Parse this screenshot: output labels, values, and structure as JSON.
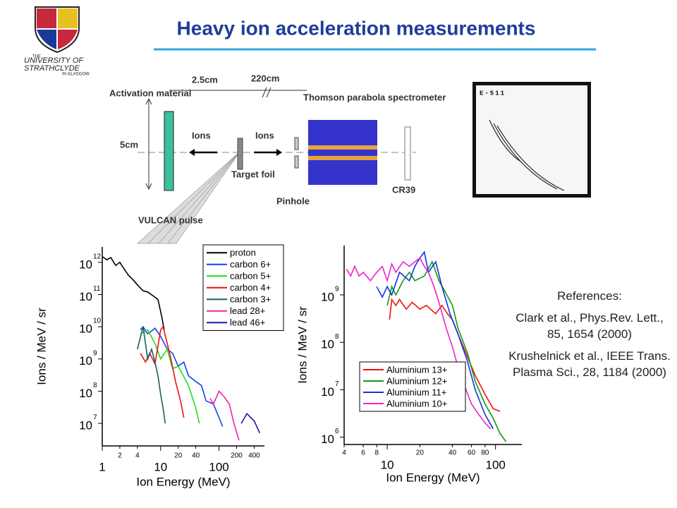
{
  "header": {
    "title": "Heavy ion acceleration measurements",
    "logo": {
      "the": "THE",
      "university": "UNIVERSITY OF",
      "name": "STRATHCLYDE",
      "place": "IN GLASGOW"
    }
  },
  "diagram": {
    "activation": "Activation material",
    "dist_near": "2.5cm",
    "dist_far": "220cm",
    "spectrometer": "Thomson parabola spectrometer",
    "height": "5cm",
    "ions_back": "Ions",
    "ions_forward": "Ions",
    "target": "Target foil",
    "pinhole": "Pinhole",
    "detector": "CR39",
    "laser": "VULCAN pulse",
    "image_label": "E-511"
  },
  "chart_data": [
    {
      "type": "line",
      "xscale": "log",
      "yscale": "log",
      "xlabel": "Ion Energy (MeV)",
      "ylabel": "Ions / MeV / sr",
      "xlim": [
        1,
        600
      ],
      "ylim": [
        2000000,
        3000000000000
      ],
      "xticks": [
        1,
        2,
        4,
        10,
        20,
        40,
        100,
        200,
        400
      ],
      "yticks": [
        {
          "value": 10000000,
          "label": "10",
          "sup": "7"
        },
        {
          "value": 100000000,
          "label": "10",
          "sup": "8"
        },
        {
          "value": 1000000000,
          "label": "10",
          "sup": "9"
        },
        {
          "value": 10000000000,
          "label": "10",
          "sup": "10"
        },
        {
          "value": 100000000000,
          "label": "10",
          "sup": "11"
        },
        {
          "value": 1000000000000,
          "label": "10",
          "sup": "12"
        }
      ],
      "legend": "upper right",
      "series": [
        {
          "name": "proton",
          "color": "#000000",
          "x": [
            1,
            1.2,
            1.4,
            1.7,
            2,
            2.4,
            2.8,
            3.3,
            4,
            5,
            6,
            7.5,
            9,
            10.5,
            11.5
          ],
          "values": [
            1500000000000,
            1200000000000,
            1400000000000,
            800000000000,
            1000000000000,
            600000000000,
            400000000000,
            300000000000,
            200000000000,
            130000000000,
            120000000000,
            90000000000,
            70000000000,
            20000000000,
            8000000000
          ]
        },
        {
          "name": "carbon 6+",
          "color": "#1144ee",
          "x": [
            4.5,
            5,
            6,
            8,
            10,
            13,
            16,
            20,
            25,
            30,
            40,
            50,
            60,
            80,
            100,
            115
          ],
          "values": [
            8000000000,
            10000000000,
            6000000000,
            9000000000,
            5000000000,
            2000000000,
            1500000000,
            600000000,
            800000000,
            300000000,
            200000000,
            150000000,
            50000000,
            40000000,
            15000000,
            8000000
          ]
        },
        {
          "name": "carbon 5+",
          "color": "#22dd22",
          "x": [
            4.5,
            6,
            8,
            10,
            13,
            16,
            20,
            30,
            40,
            46
          ],
          "values": [
            6000000000,
            8000000000,
            3000000000,
            1000000000,
            2000000000,
            500000000,
            600000000,
            150000000,
            30000000,
            10000000
          ]
        },
        {
          "name": "carbon 4+",
          "color": "#ee1111",
          "x": [
            4.5,
            5.5,
            6.5,
            8,
            10,
            11,
            13,
            15,
            18,
            22,
            25
          ],
          "values": [
            1500000000,
            800000000,
            1500000000,
            700000000,
            8000000000,
            10000000000,
            3000000000,
            1000000000,
            200000000,
            50000000,
            15000000
          ]
        },
        {
          "name": "carbon 3+",
          "color": "#1a6060",
          "x": [
            4,
            5,
            6,
            7,
            8,
            9,
            10,
            11,
            12
          ],
          "values": [
            2000000000,
            10000000000,
            1000000000,
            2000000000,
            800000000,
            300000000,
            80000000,
            30000000,
            10000000
          ]
        },
        {
          "name": "lead 28+",
          "color": "#ee22aa",
          "x": [
            70,
            80,
            100,
            120,
            150,
            180,
            220
          ],
          "values": [
            60000000,
            40000000,
            100000000,
            70000000,
            40000000,
            10000000,
            3000000
          ]
        },
        {
          "name": "lead 46+",
          "color": "#1a1aa0",
          "x": [
            240,
            300,
            400,
            500
          ],
          "values": [
            10000000,
            20000000,
            12000000,
            5000000
          ]
        }
      ]
    },
    {
      "type": "line",
      "xscale": "log",
      "yscale": "log",
      "xlabel": "Ion Energy (MeV)",
      "ylabel": "Ions / MeV / sr",
      "xlim": [
        4,
        175
      ],
      "ylim": [
        700000,
        11000000000
      ],
      "xticks": [
        4,
        6,
        8,
        10,
        20,
        40,
        60,
        80,
        100
      ],
      "yticks": [
        {
          "value": 1000000,
          "label": "10",
          "sup": "6"
        },
        {
          "value": 10000000,
          "label": "10",
          "sup": "7"
        },
        {
          "value": 100000000,
          "label": "10",
          "sup": "8"
        },
        {
          "value": 1000000000,
          "label": "10",
          "sup": "9"
        }
      ],
      "legend": "lower left",
      "series": [
        {
          "name": "Aluminium 13+",
          "color": "#ee1111",
          "x": [
            10.5,
            11,
            12,
            13,
            15,
            17,
            20,
            23,
            28,
            32,
            36,
            40,
            45,
            55,
            65,
            80,
            95,
            110
          ],
          "values": [
            300000000,
            800000000,
            600000000,
            800000000,
            500000000,
            700000000,
            500000000,
            600000000,
            400000000,
            600000000,
            400000000,
            300000000,
            150000000,
            50000000,
            20000000,
            8000000,
            4000000,
            3500000
          ]
        },
        {
          "name": "Aluminium 12+",
          "color": "#119911",
          "x": [
            10,
            11,
            12,
            14,
            16,
            18,
            22,
            26,
            30,
            34,
            40,
            45,
            55,
            65,
            80,
            95,
            110,
            125
          ],
          "values": [
            600000000,
            1500000000,
            1000000000,
            2000000000,
            3000000000,
            2000000000,
            2500000000,
            5000000000,
            2000000000,
            1200000000,
            600000000,
            200000000,
            60000000,
            15000000,
            5000000,
            2500000,
            1200000,
            800000
          ]
        },
        {
          "name": "Aluminium 11+",
          "color": "#1133dd",
          "x": [
            8,
            9,
            10,
            11,
            13,
            16,
            18,
            20,
            22,
            24,
            28,
            32,
            38,
            45,
            55,
            65,
            80,
            95
          ],
          "values": [
            1500000000,
            900000000,
            1500000000,
            1000000000,
            3000000000,
            2000000000,
            4000000000,
            6000000000,
            8000000000,
            3000000000,
            5000000000,
            1500000000,
            400000000,
            150000000,
            40000000,
            10000000,
            3000000,
            1500000
          ]
        },
        {
          "name": "Aluminium 10+",
          "color": "#ee22cc",
          "x": [
            4.2,
            4.6,
            5,
            5.5,
            6,
            7,
            8,
            9,
            10,
            11,
            12,
            14,
            16,
            18,
            20,
            22,
            24,
            27,
            30,
            35,
            40,
            45,
            50,
            60,
            70,
            80,
            90
          ],
          "values": [
            3500000000,
            2500000000,
            4000000000,
            2500000000,
            3000000000,
            2000000000,
            3000000000,
            4000000000,
            2000000000,
            4500000000,
            3000000000,
            5000000000,
            4000000000,
            5000000000,
            6000000000,
            4000000000,
            3000000000,
            1500000000,
            700000000,
            200000000,
            80000000,
            30000000,
            15000000,
            5000000,
            3000000,
            2000000,
            1500000
          ]
        }
      ]
    }
  ],
  "references": {
    "heading": "References:",
    "items": [
      "Clark et al., Phys.Rev. Lett., 85, 1654 (2000)",
      "Krushelnick et al., IEEE Trans. Plasma Sci., 28, 1184 (2000)"
    ]
  }
}
